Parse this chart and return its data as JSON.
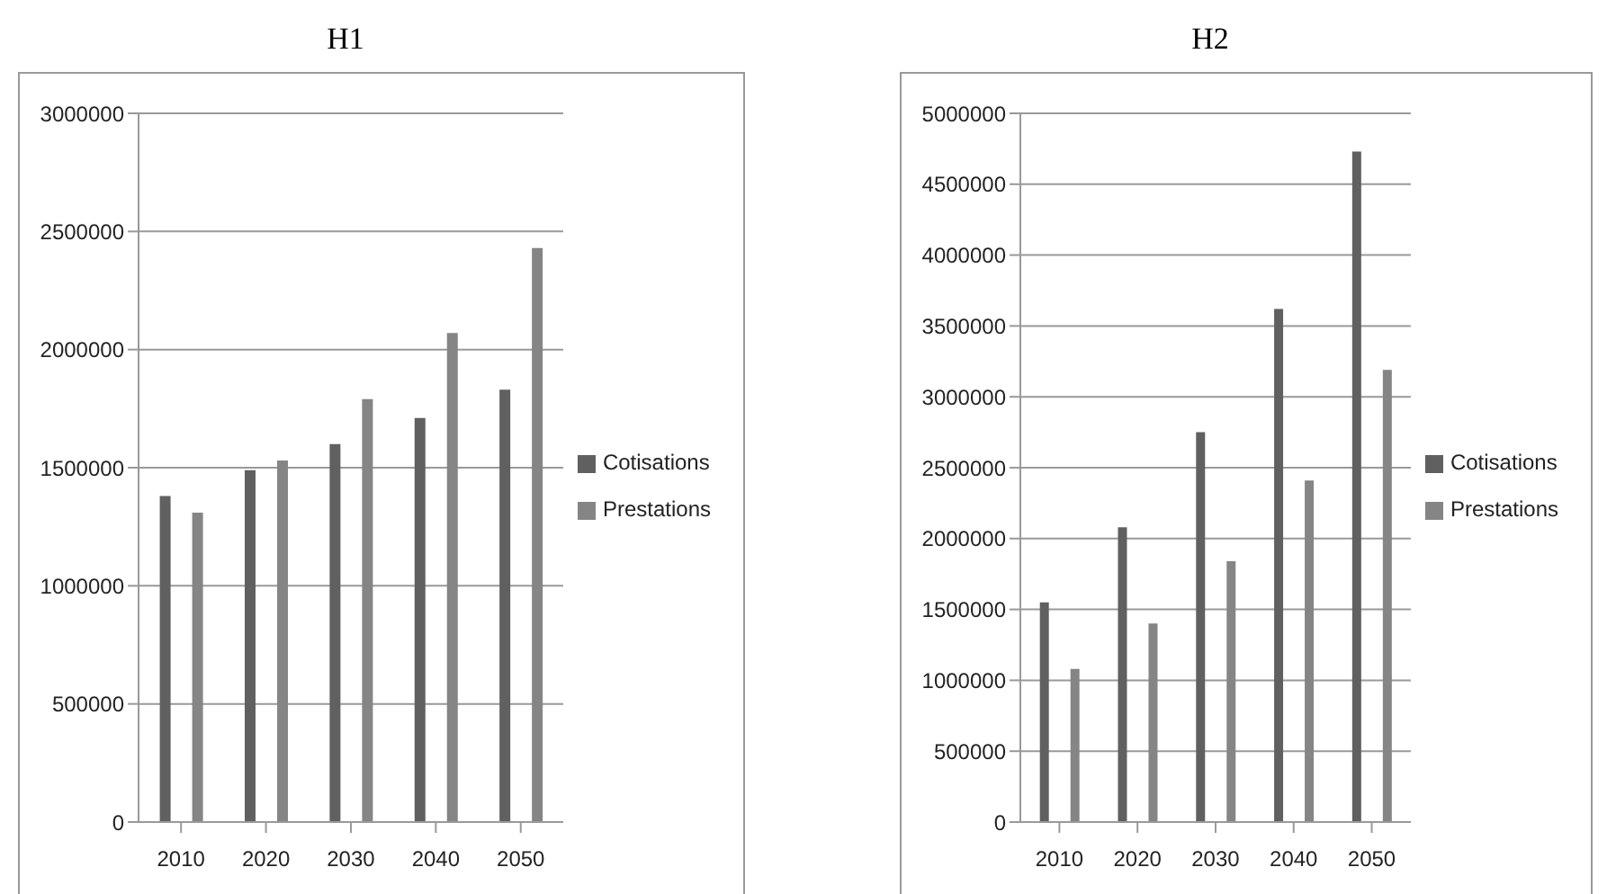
{
  "chart_data": [
    {
      "type": "bar",
      "title": "H1",
      "categories": [
        "2010",
        "2020",
        "2030",
        "2040",
        "2050"
      ],
      "series": [
        {
          "name": "Cotisations",
          "color": "#606060",
          "values": [
            1380000,
            1490000,
            1600000,
            1710000,
            1830000
          ]
        },
        {
          "name": "Prestations",
          "color": "#858585",
          "values": [
            1310000,
            1530000,
            1790000,
            2070000,
            2430000
          ]
        }
      ],
      "ylim": [
        0,
        3000000
      ],
      "yticks": [
        0,
        500000,
        1000000,
        1500000,
        2000000,
        2500000,
        3000000
      ],
      "grid": "y",
      "legend": "right"
    },
    {
      "type": "bar",
      "title": "H2",
      "categories": [
        "2010",
        "2020",
        "2030",
        "2040",
        "2050"
      ],
      "series": [
        {
          "name": "Cotisations",
          "color": "#606060",
          "values": [
            1550000,
            2080000,
            2750000,
            3620000,
            4730000
          ]
        },
        {
          "name": "Prestations",
          "color": "#858585",
          "values": [
            1080000,
            1400000,
            1840000,
            2410000,
            3190000
          ]
        }
      ],
      "ylim": [
        0,
        5000000
      ],
      "yticks": [
        0,
        500000,
        1000000,
        1500000,
        2000000,
        2500000,
        3000000,
        3500000,
        4000000,
        4500000,
        5000000
      ],
      "grid": "y",
      "legend": "right"
    }
  ]
}
